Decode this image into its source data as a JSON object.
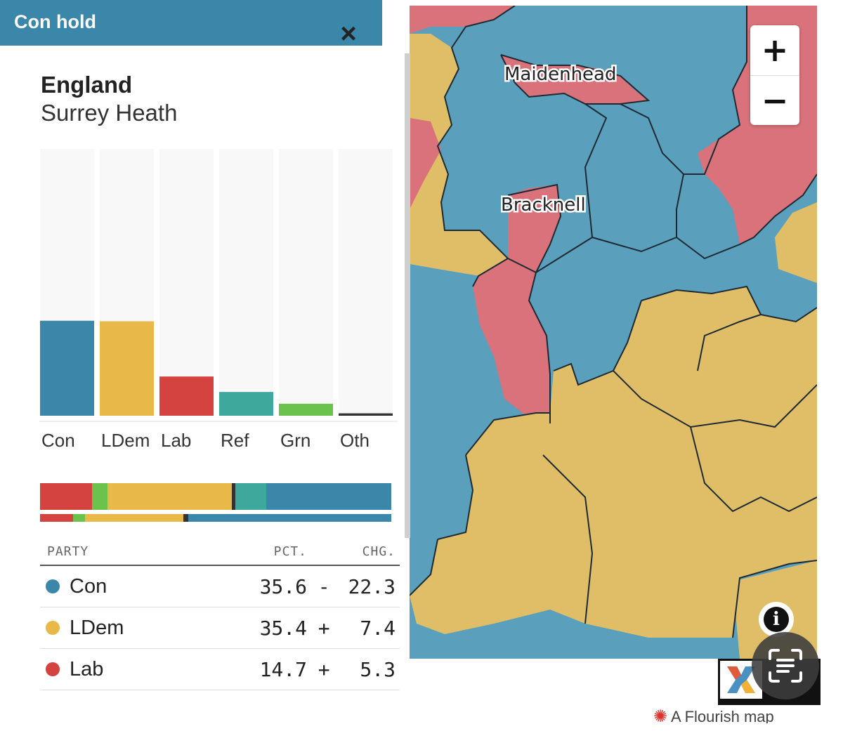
{
  "header": {
    "title": "Con hold",
    "close_icon": "close-icon"
  },
  "location": {
    "region": "England",
    "constituency": "Surrey Heath"
  },
  "colors": {
    "Con": "#3a87a9",
    "LDem": "#e8b949",
    "Lab": "#d4433f",
    "Ref": "#3fa89c",
    "Grn": "#6bc24d",
    "Oth": "#333333",
    "header": "#3a87a9"
  },
  "chart_data": {
    "type": "bar",
    "categories": [
      "Con",
      "LDem",
      "Lab",
      "Ref",
      "Grn",
      "Oth"
    ],
    "values": [
      35.6,
      35.4,
      14.7,
      8.9,
      4.5,
      0.9
    ],
    "ylim": [
      0,
      100
    ],
    "grid": false
  },
  "comparison_strip": {
    "current": [
      {
        "party": "Lab",
        "value": 14.7
      },
      {
        "party": "Grn",
        "value": 4.5
      },
      {
        "party": "LDem",
        "value": 35.4
      },
      {
        "party": "Oth",
        "value": 0.9
      },
      {
        "party": "Ref",
        "value": 8.9
      },
      {
        "party": "Con",
        "value": 35.6
      }
    ],
    "previous": [
      {
        "party": "Lab",
        "value": 9.4
      },
      {
        "party": "Grn",
        "value": 3.4
      },
      {
        "party": "LDem",
        "value": 28.0
      },
      {
        "party": "Oth",
        "value": 1.3
      },
      {
        "party": "Con",
        "value": 57.9
      }
    ]
  },
  "table": {
    "headers": {
      "party": "PARTY",
      "pct": "PCT.",
      "chg": "CHG."
    },
    "rows": [
      {
        "party": "Con",
        "pct": "35.6",
        "sign": "-",
        "chg": "22.3"
      },
      {
        "party": "LDem",
        "pct": "35.4",
        "sign": "+",
        "chg": "7.4"
      },
      {
        "party": "Lab",
        "pct": "14.7",
        "sign": "+",
        "chg": "5.3"
      }
    ]
  },
  "map": {
    "labels": {
      "maidenhead": "Maidenhead",
      "bracknell": "Bracknell"
    },
    "zoom_in": "+",
    "zoom_out": "−",
    "info": "i",
    "credit": "A Flourish map"
  }
}
